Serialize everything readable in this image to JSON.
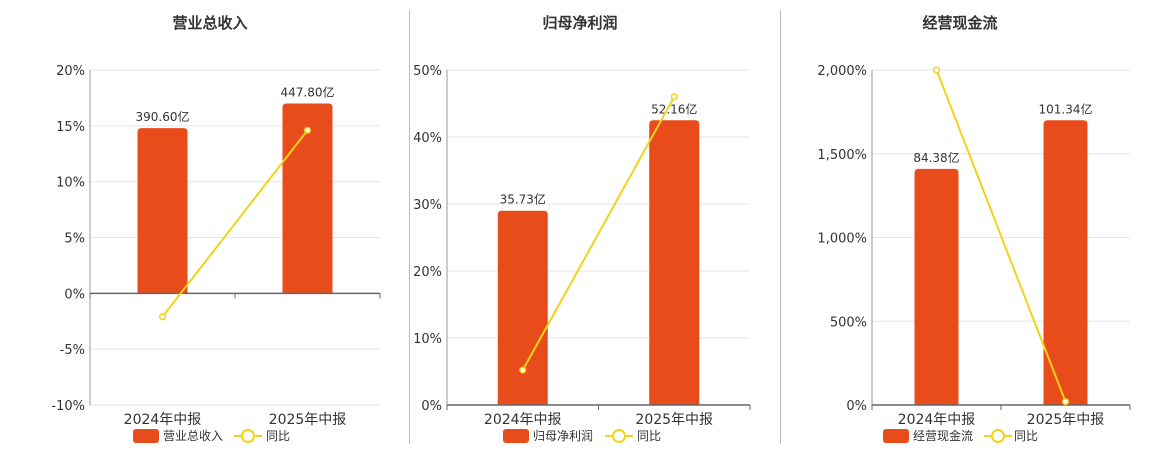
{
  "colors": {
    "bar": "#e84c1a",
    "line": "#f2d21b",
    "grid": "#e6e6e6",
    "axis": "#666666",
    "text": "#333333"
  },
  "chart_data": [
    {
      "type": "bar",
      "title": "营业总收入",
      "categories": [
        "2024年中报",
        "2025年中报"
      ],
      "series": [
        {
          "name": "营业总收入",
          "kind": "bar",
          "values": [
            14.8,
            17.0
          ],
          "labels": [
            "390.60亿",
            "447.80亿"
          ]
        },
        {
          "name": "同比",
          "kind": "line",
          "values": [
            -2.1,
            14.6
          ]
        }
      ],
      "ylim": [
        -10,
        20
      ],
      "yticks": [
        20,
        15,
        10,
        5,
        0,
        -5,
        -10
      ],
      "ytick_labels": [
        "20%",
        "15%",
        "10%",
        "5%",
        "0%",
        "-5%",
        "-10%"
      ]
    },
    {
      "type": "bar",
      "title": "归母净利润",
      "categories": [
        "2024年中报",
        "2025年中报"
      ],
      "series": [
        {
          "name": "归母净利润",
          "kind": "bar",
          "values": [
            29.0,
            42.5
          ],
          "labels": [
            "35.73亿",
            "52.16亿"
          ]
        },
        {
          "name": "同比",
          "kind": "line",
          "values": [
            5.2,
            46.0
          ]
        }
      ],
      "ylim": [
        0,
        50
      ],
      "yticks": [
        50,
        40,
        30,
        20,
        10,
        0
      ],
      "ytick_labels": [
        "50%",
        "40%",
        "30%",
        "20%",
        "10%",
        "0%"
      ]
    },
    {
      "type": "bar",
      "title": "经营现金流",
      "categories": [
        "2024年中报",
        "2025年中报"
      ],
      "series": [
        {
          "name": "经营现金流",
          "kind": "bar",
          "values": [
            1410,
            1700
          ],
          "labels": [
            "84.38亿",
            "101.34亿"
          ]
        },
        {
          "name": "同比",
          "kind": "line",
          "values": [
            2000,
            20
          ]
        }
      ],
      "ylim": [
        0,
        2000
      ],
      "yticks": [
        2000,
        1500,
        1000,
        500,
        0
      ],
      "ytick_labels": [
        "2,000%",
        "1,500%",
        "1,000%",
        "500%",
        "0%"
      ]
    }
  ]
}
